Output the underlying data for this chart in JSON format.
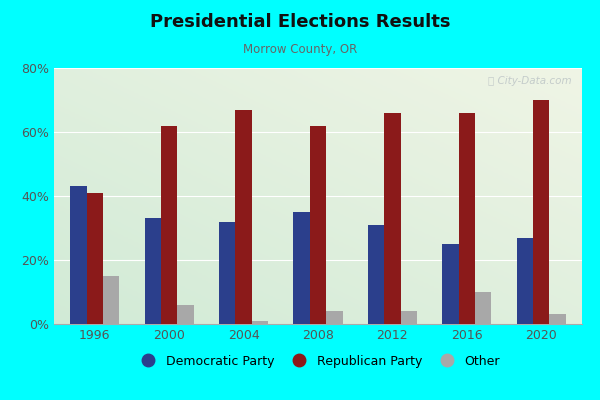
{
  "title": "Presidential Elections Results",
  "subtitle": "Morrow County, OR",
  "years": [
    1996,
    2000,
    2004,
    2008,
    2012,
    2016,
    2020
  ],
  "democratic": [
    43,
    33,
    32,
    35,
    31,
    25,
    27
  ],
  "republican": [
    41,
    62,
    67,
    62,
    66,
    66,
    70
  ],
  "other": [
    15,
    6,
    1,
    4,
    4,
    10,
    3
  ],
  "dem_color": "#2b3f8c",
  "rep_color": "#8b1a1a",
  "other_color": "#a8a8a8",
  "bg_color_top_right": "#f5f5ee",
  "bg_color_bottom_left": "#d0e8d0",
  "outer_bg": "#00ffff",
  "ylim": [
    0,
    80
  ],
  "yticks": [
    0,
    20,
    40,
    60,
    80
  ],
  "bar_width": 0.22,
  "watermark": "ⓘ City-Data.com"
}
